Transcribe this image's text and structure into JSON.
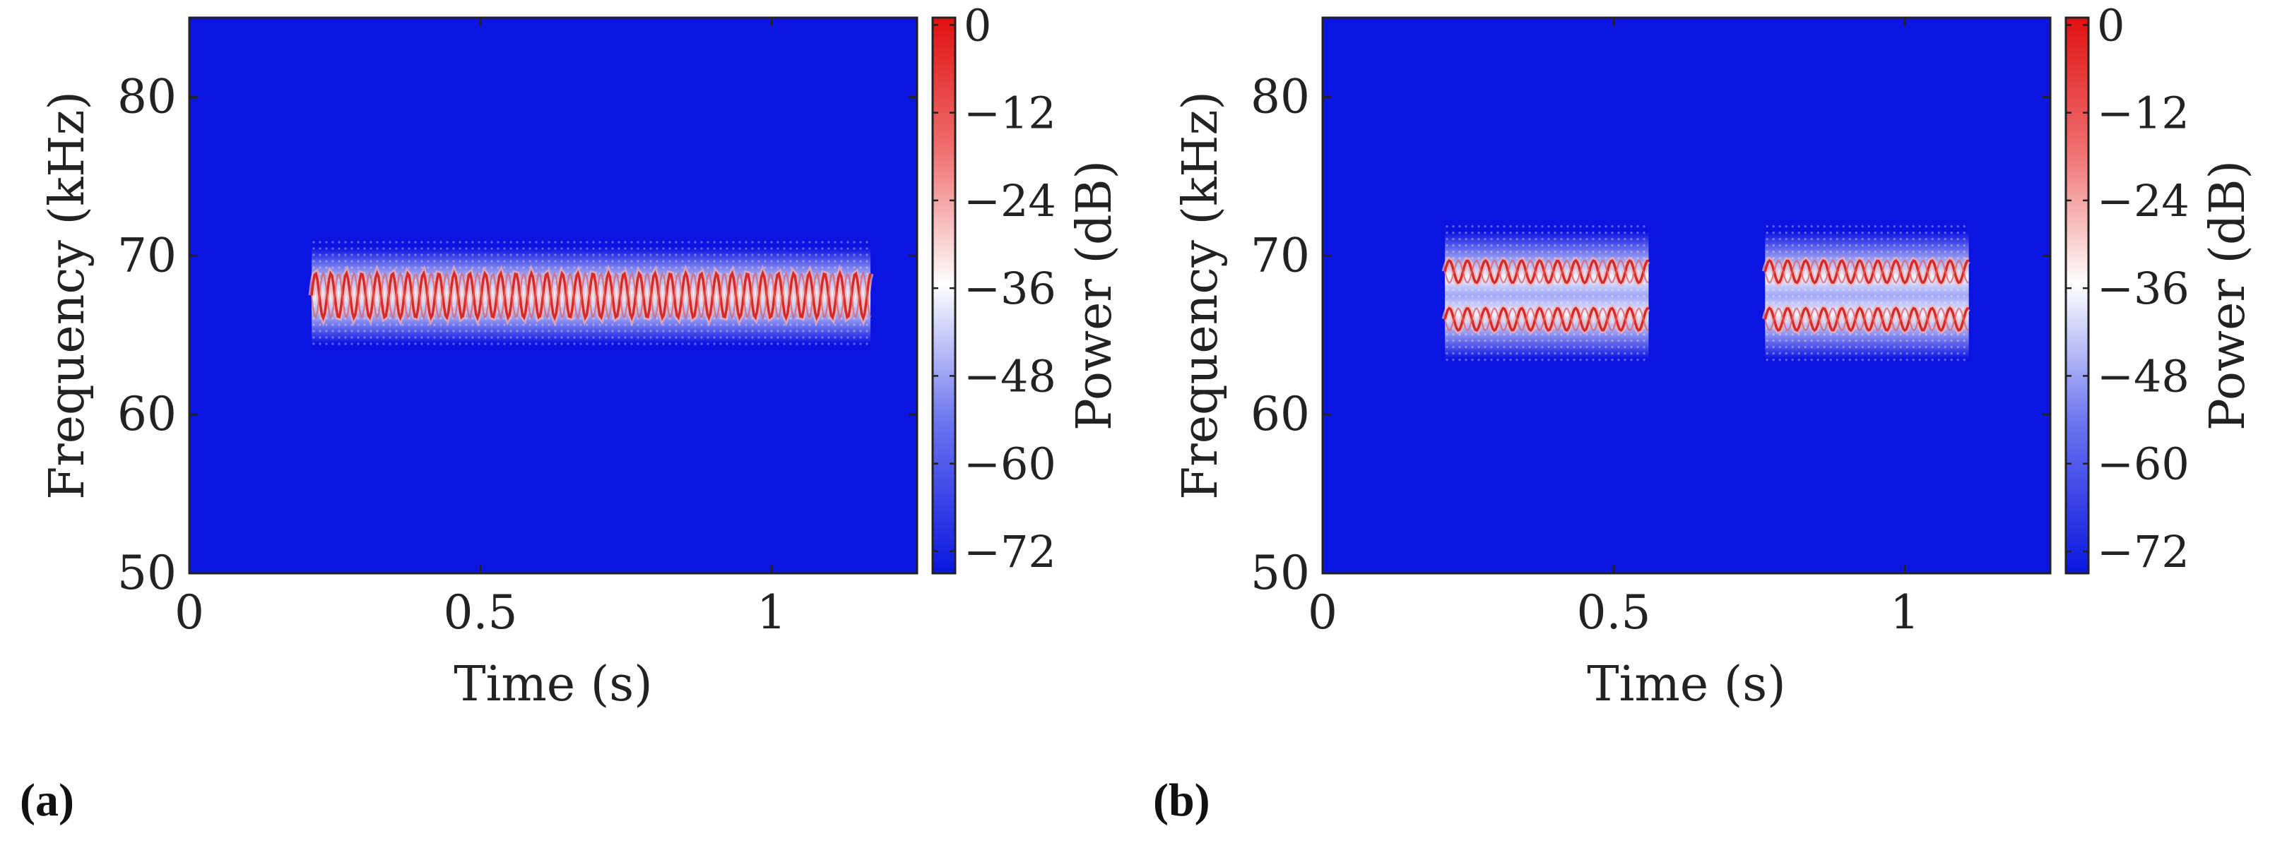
{
  "chart_data": [
    {
      "type": "heatmap",
      "panel_label": "(a)",
      "xlabel": "Time (s)",
      "ylabel": "Frequency (kHz)",
      "colorbar_label": "Power (dB)",
      "xlim": [
        0,
        1.25
      ],
      "ylim": [
        50,
        85
      ],
      "x_ticks": [
        0,
        0.5,
        1
      ],
      "x_tick_labels": [
        "0",
        "0.5",
        "1"
      ],
      "y_ticks": [
        50,
        60,
        70,
        80
      ],
      "y_tick_labels": [
        "50",
        "60",
        "70",
        "80"
      ],
      "clim": [
        -75,
        1
      ],
      "colorbar_ticks": [
        0,
        -12,
        -24,
        -36,
        -48,
        -60,
        -72
      ],
      "colorbar_tick_labels": [
        "0",
        "−12",
        "−24",
        "−36",
        "−48",
        "−60",
        "−72"
      ],
      "colormap": [
        "#0a16e0",
        "#ffffff",
        "#e01010"
      ],
      "background_color": "#0c14e2",
      "bursts": [
        {
          "t_start": 0.21,
          "t_end": 1.17,
          "f_center": 67.5,
          "f_half_width": 3,
          "components": [
            {
              "f_center": 67.5,
              "f_deviation": 1.4
            }
          ]
        }
      ]
    },
    {
      "type": "heatmap",
      "panel_label": "(b)",
      "xlabel": "Time (s)",
      "ylabel": "Frequency (kHz)",
      "colorbar_label": "Power (dB)",
      "xlim": [
        0,
        1.25
      ],
      "ylim": [
        50,
        85
      ],
      "x_ticks": [
        0,
        0.5,
        1
      ],
      "x_tick_labels": [
        "0",
        "0.5",
        "1"
      ],
      "y_ticks": [
        50,
        60,
        70,
        80
      ],
      "y_tick_labels": [
        "50",
        "60",
        "70",
        "80"
      ],
      "clim": [
        -75,
        1
      ],
      "colorbar_ticks": [
        0,
        -12,
        -24,
        -36,
        -48,
        -60,
        -72
      ],
      "colorbar_tick_labels": [
        "0",
        "−12",
        "−24",
        "−36",
        "−48",
        "−60",
        "−72"
      ],
      "colormap": [
        "#0a16e0",
        "#ffffff",
        "#e01010"
      ],
      "background_color": "#0c14e2",
      "bursts": [
        {
          "t_start": 0.21,
          "t_end": 0.56,
          "f_center": 67.5,
          "f_half_width": 4,
          "components": [
            {
              "f_center": 69,
              "f_deviation": 0.7
            },
            {
              "f_center": 66,
              "f_deviation": 0.7
            }
          ]
        },
        {
          "t_start": 0.76,
          "t_end": 1.11,
          "f_center": 67.5,
          "f_half_width": 4,
          "components": [
            {
              "f_center": 69,
              "f_deviation": 0.7
            },
            {
              "f_center": 66,
              "f_deviation": 0.7
            }
          ]
        }
      ]
    }
  ]
}
